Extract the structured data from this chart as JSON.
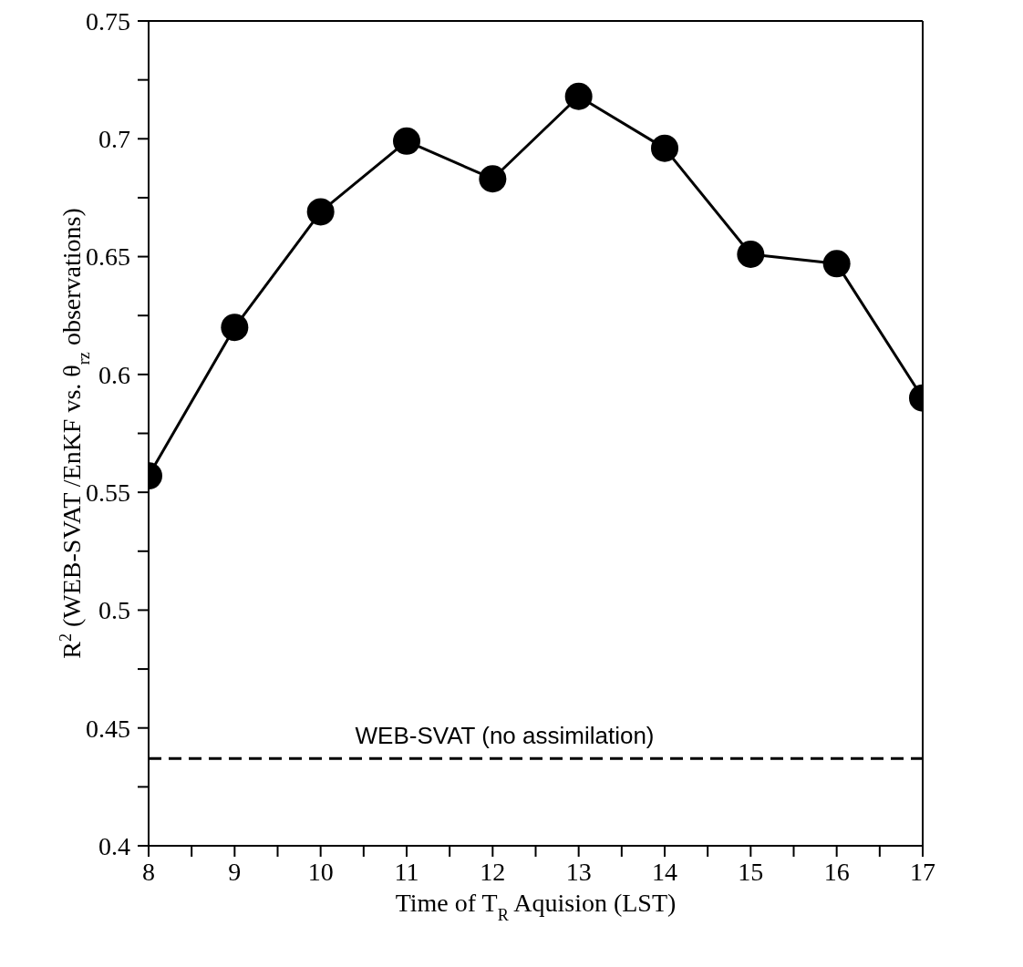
{
  "chart_data": {
    "type": "line",
    "xlabel": "Time  of T$_{R}$ Aquision (LST)",
    "ylabel": "R$^{2}$ (WEB-SVAT /EnKF vs. θ$_{rz}$ observations)",
    "x": [
      8,
      9,
      10,
      11,
      12,
      13,
      14,
      15,
      16,
      17
    ],
    "series": [
      {
        "color": "#000000",
        "values": [
          0.557,
          0.62,
          0.669,
          0.699,
          0.683,
          0.718,
          0.696,
          0.651,
          0.647,
          0.59
        ]
      }
    ],
    "marker": "circle",
    "line_style": "solid",
    "xlim": [
      8,
      17
    ],
    "xticks": [
      8,
      {
        "value": 8.5,
        "label": null
      },
      9,
      {
        "value": 9.5,
        "label": null
      },
      10,
      {
        "value": 10.5,
        "label": null
      },
      11,
      {
        "value": 11.5,
        "label": null
      },
      12,
      {
        "value": 12.5,
        "label": null
      },
      13,
      {
        "value": 13.5,
        "label": null
      },
      14,
      {
        "value": 14.5,
        "label": null
      },
      15,
      {
        "value": 15.5,
        "label": null
      },
      16,
      {
        "value": 16.5,
        "label": null
      },
      17
    ],
    "ylim": [
      0.4,
      0.75
    ],
    "yticks": [
      0.4,
      {
        "value": 0.425,
        "label": null
      },
      0.45,
      {
        "value": 0.475,
        "label": null
      },
      0.5,
      {
        "value": 0.525,
        "label": null
      },
      0.55,
      {
        "value": 0.575,
        "label": null
      },
      0.6,
      {
        "value": 0.625,
        "label": null
      },
      0.65,
      {
        "value": 0.675,
        "label": null
      },
      0.7,
      {
        "value": 0.725,
        "label": null
      },
      0.75
    ],
    "ref_lines": [
      {
        "axis": "y",
        "value": 0.437,
        "label": "WEB-SVAT (no assimilation)",
        "color": "#000000",
        "line_style": "dashed"
      }
    ]
  }
}
